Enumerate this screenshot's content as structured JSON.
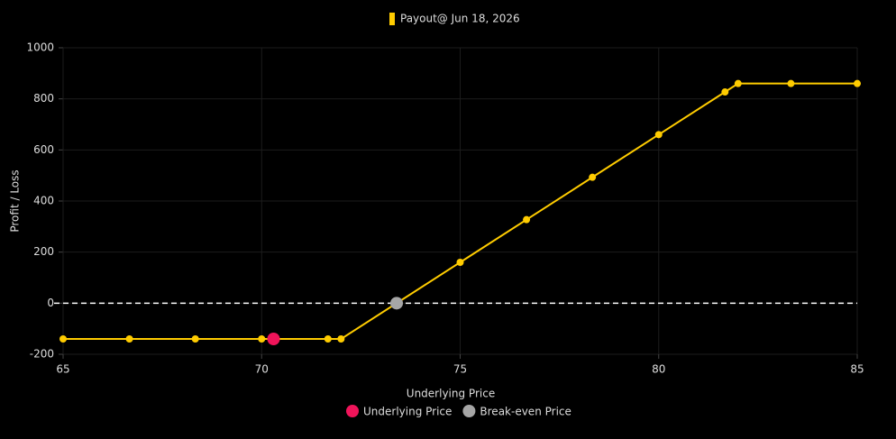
{
  "chart_data": {
    "type": "line",
    "x": [
      65,
      66.67,
      68.33,
      70,
      71.67,
      72,
      75,
      76.67,
      78.33,
      80,
      81.67,
      82,
      83.33,
      85
    ],
    "series": [
      {
        "name": "Payout@ Jun 18, 2026",
        "color": "#ffcc00",
        "values": [
          -140,
          -140,
          -140,
          -140,
          -140,
          -140,
          160,
          327,
          493,
          660,
          827,
          860,
          860,
          860
        ]
      }
    ],
    "markers": [
      {
        "name": "Underlying Price",
        "color": "#f0145a",
        "x": [
          70.3
        ],
        "values": [
          -140
        ]
      },
      {
        "name": "Break-even Price",
        "color": "#a6a6a6",
        "x": [
          73.4
        ],
        "values": [
          0
        ]
      }
    ],
    "xlabel": "Underlying Price",
    "ylabel": "Profit / Loss",
    "xlim": [
      65,
      85
    ],
    "xticks": [
      65,
      70,
      75,
      80,
      85
    ],
    "ylim": [
      -200,
      1000
    ],
    "yticks": [
      -200,
      0,
      200,
      400,
      600,
      800,
      1000
    ],
    "grid": true,
    "zero_line": true
  }
}
